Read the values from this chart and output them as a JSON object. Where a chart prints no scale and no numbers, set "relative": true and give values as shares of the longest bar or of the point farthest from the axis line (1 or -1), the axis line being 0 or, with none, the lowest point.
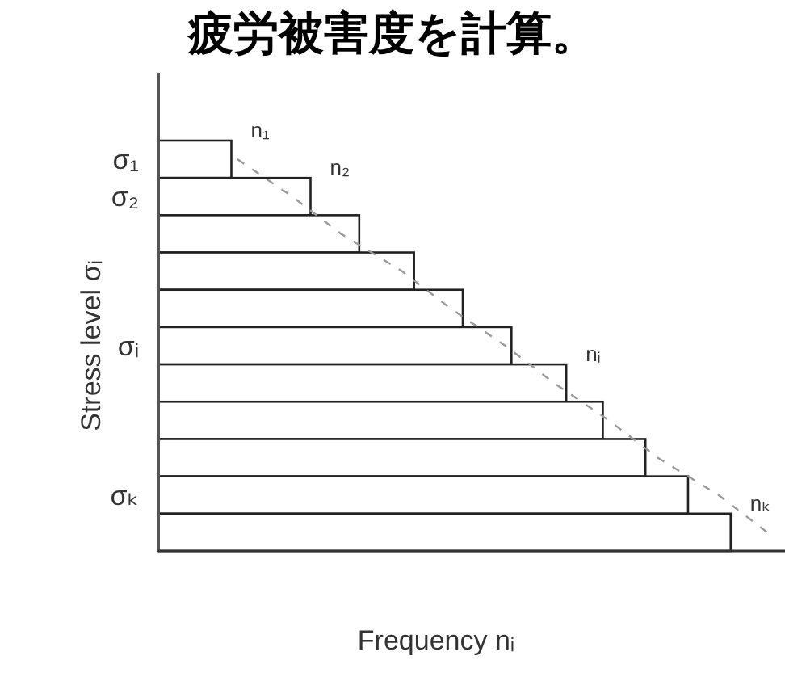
{
  "chart_data": {
    "type": "bar",
    "orientation": "horizontal",
    "relative": true,
    "title": "疲労被害度を計算。",
    "xlabel": "Frequency nᵢ",
    "ylabel": "Stress level σᵢ",
    "annotations": [
      "n₁",
      "n₂",
      "nᵢ",
      "nₖ"
    ],
    "categories": [
      "σ₁",
      "σ₂",
      null,
      null,
      null,
      "σᵢ",
      null,
      null,
      null,
      "σₖ",
      null
    ],
    "series": [
      {
        "color": "#ffffff",
        "values": [
          0.12,
          0.25,
          0.33,
          0.42,
          0.5,
          0.58,
          0.67,
          0.73,
          0.8,
          0.87,
          0.94
        ]
      },
      {
        "type": "line",
        "color": "#999999",
        "line_style": "dashed",
        "values": [
          0.13,
          0.22,
          0.3,
          0.4,
          0.48,
          0.57,
          0.65,
          0.74,
          0.82,
          0.92,
          1.0
        ]
      }
    ]
  }
}
